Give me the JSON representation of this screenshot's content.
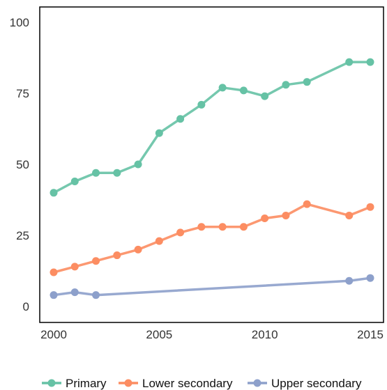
{
  "chart_data": {
    "type": "line",
    "title": "",
    "xlabel": "",
    "ylabel": "",
    "xlim": [
      2000,
      2015
    ],
    "ylim": [
      0,
      100
    ],
    "grid": false,
    "legend_position": "bottom",
    "x_ticks": [
      "2000",
      "2005",
      "2010",
      "2015"
    ],
    "y_ticks": [
      "0",
      "25",
      "50",
      "75",
      "100"
    ],
    "series": [
      {
        "name": "Primary",
        "color": "#66c2a5",
        "x": [
          2000,
          2001,
          2002,
          2003,
          2004,
          2005,
          2006,
          2007,
          2008,
          2009,
          2010,
          2011,
          2012,
          2014,
          2015
        ],
        "y": [
          40,
          44,
          47,
          47,
          50,
          61,
          66,
          71,
          77,
          76,
          74,
          78,
          79,
          86,
          86
        ]
      },
      {
        "name": "Lower secondary",
        "color": "#fc8d62",
        "x": [
          2000,
          2001,
          2002,
          2003,
          2004,
          2005,
          2006,
          2007,
          2008,
          2009,
          2010,
          2011,
          2012,
          2014,
          2015
        ],
        "y": [
          12,
          14,
          16,
          18,
          20,
          23,
          26,
          28,
          28,
          28,
          31,
          32,
          36,
          32,
          35
        ]
      },
      {
        "name": "Upper secondary",
        "color": "#8da0cb",
        "x": [
          2000,
          2001,
          2002,
          2014,
          2015
        ],
        "y": [
          4,
          5,
          4,
          9,
          10
        ]
      }
    ]
  }
}
